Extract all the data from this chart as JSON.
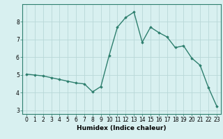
{
  "x": [
    0,
    1,
    2,
    3,
    4,
    5,
    6,
    7,
    8,
    9,
    10,
    11,
    12,
    13,
    14,
    15,
    16,
    17,
    18,
    19,
    20,
    21,
    22,
    23
  ],
  "y": [
    5.05,
    5.0,
    4.95,
    4.85,
    4.75,
    4.65,
    4.55,
    4.5,
    4.05,
    4.35,
    6.1,
    7.7,
    8.25,
    8.55,
    6.85,
    7.7,
    7.4,
    7.15,
    6.55,
    6.65,
    5.95,
    5.55,
    4.3,
    3.25
  ],
  "line_color": "#2e7f6e",
  "marker": "D",
  "marker_size": 1.8,
  "background_color": "#d8f0f0",
  "grid_color": "#b8d8d8",
  "xlabel": "Humidex (Indice chaleur)",
  "xlabel_fontsize": 6.5,
  "xlim": [
    -0.5,
    23.5
  ],
  "ylim": [
    2.8,
    9.0
  ],
  "yticks": [
    3,
    4,
    5,
    6,
    7,
    8
  ],
  "xticks": [
    0,
    1,
    2,
    3,
    4,
    5,
    6,
    7,
    8,
    9,
    10,
    11,
    12,
    13,
    14,
    15,
    16,
    17,
    18,
    19,
    20,
    21,
    22,
    23
  ],
  "tick_fontsize": 5.5,
  "line_width": 1.0
}
